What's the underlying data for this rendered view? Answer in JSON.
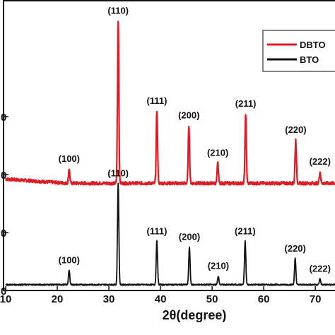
{
  "chart_data": {
    "type": "line",
    "xlabel": "2θ(degree)",
    "ylabel": "",
    "xlim": [
      10,
      76
    ],
    "x_ticks": [
      10,
      20,
      30,
      40,
      50,
      60,
      70
    ],
    "y_tick_fragments": [
      "0",
      "0",
      "0",
      "0"
    ],
    "y_ticks": [
      0,
      20,
      40,
      60
    ],
    "ylim": [
      0,
      100
    ],
    "legend_position": "top-right",
    "series": [
      {
        "name": "DBTO",
        "color": "#e01b24",
        "baseline": 37,
        "peaks": [
          {
            "hkl": "(100)",
            "x": 22.3,
            "height": 5
          },
          {
            "hkl": "(110)",
            "x": 31.8,
            "height": 56
          },
          {
            "hkl": "(111)",
            "x": 39.3,
            "height": 25
          },
          {
            "hkl": "(200)",
            "x": 45.5,
            "height": 20
          },
          {
            "hkl": "(210)",
            "x": 51.1,
            "height": 7
          },
          {
            "hkl": "(211)",
            "x": 56.5,
            "height": 24
          },
          {
            "hkl": "(220)",
            "x": 66.2,
            "height": 15
          },
          {
            "hkl": "(222)",
            "x": 70.9,
            "height": 4
          },
          {
            "hkl": "(",
            "x": 74.5,
            "height": 0
          }
        ]
      },
      {
        "name": "BTO",
        "color": "#111111",
        "baseline": 2,
        "peaks": [
          {
            "hkl": "(100)",
            "x": 22.3,
            "height": 5
          },
          {
            "hkl": "(110)",
            "x": 31.8,
            "height": 35
          },
          {
            "hkl": "(111)",
            "x": 39.3,
            "height": 15
          },
          {
            "hkl": "(200)",
            "x": 45.6,
            "height": 13
          },
          {
            "hkl": "(210)",
            "x": 51.2,
            "height": 3
          },
          {
            "hkl": "(211)",
            "x": 56.4,
            "height": 15
          },
          {
            "hkl": "(220)",
            "x": 66.1,
            "height": 9
          },
          {
            "hkl": "(222)",
            "x": 70.9,
            "height": 2
          }
        ]
      }
    ]
  }
}
